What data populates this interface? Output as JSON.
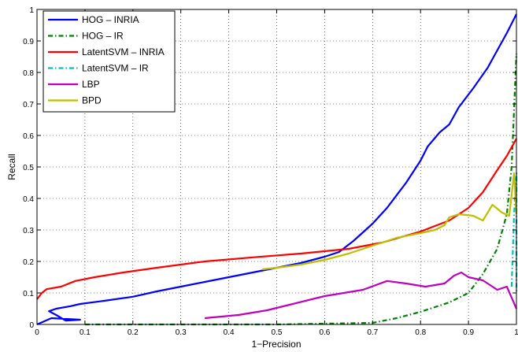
{
  "chart_data": {
    "type": "line",
    "title": "",
    "xlabel": "1−Precision",
    "ylabel": "Recall",
    "xlim": [
      0,
      1
    ],
    "ylim": [
      0,
      1
    ],
    "grid": true,
    "legend_position": "top-left",
    "x_ticks": [
      "0",
      "0.1",
      "0.2",
      "0.3",
      "0.4",
      "0.5",
      "0.6",
      "0.7",
      "0.8",
      "0.9",
      "1"
    ],
    "y_ticks": [
      "0",
      "0.1",
      "0.2",
      "0.3",
      "0.4",
      "0.5",
      "0.6",
      "0.7",
      "0.8",
      "0.9",
      "1"
    ],
    "series": [
      {
        "name": "HOG – INRIA",
        "color": "#0000ff",
        "dash": "solid",
        "points": [
          [
            0.0,
            0.0
          ],
          [
            0.03,
            0.02
          ],
          [
            0.09,
            0.015
          ],
          [
            0.06,
            0.012
          ],
          [
            0.04,
            0.03
          ],
          [
            0.025,
            0.042
          ],
          [
            0.04,
            0.05
          ],
          [
            0.07,
            0.058
          ],
          [
            0.09,
            0.065
          ],
          [
            0.14,
            0.075
          ],
          [
            0.2,
            0.088
          ],
          [
            0.25,
            0.105
          ],
          [
            0.3,
            0.12
          ],
          [
            0.35,
            0.135
          ],
          [
            0.4,
            0.15
          ],
          [
            0.45,
            0.165
          ],
          [
            0.5,
            0.18
          ],
          [
            0.55,
            0.195
          ],
          [
            0.6,
            0.215
          ],
          [
            0.63,
            0.23
          ],
          [
            0.66,
            0.265
          ],
          [
            0.7,
            0.32
          ],
          [
            0.73,
            0.37
          ],
          [
            0.77,
            0.45
          ],
          [
            0.8,
            0.52
          ],
          [
            0.815,
            0.565
          ],
          [
            0.84,
            0.61
          ],
          [
            0.86,
            0.635
          ],
          [
            0.88,
            0.69
          ],
          [
            0.91,
            0.75
          ],
          [
            0.94,
            0.815
          ],
          [
            0.96,
            0.87
          ],
          [
            0.98,
            0.925
          ],
          [
            1.0,
            0.985
          ]
        ]
      },
      {
        "name": "HOG – IR",
        "color": "#008000",
        "dash": "dashdot",
        "points": [
          [
            0.1,
            0.0
          ],
          [
            0.5,
            0.0
          ],
          [
            0.7,
            0.005
          ],
          [
            0.75,
            0.02
          ],
          [
            0.8,
            0.04
          ],
          [
            0.86,
            0.07
          ],
          [
            0.9,
            0.1
          ],
          [
            0.93,
            0.16
          ],
          [
            0.96,
            0.24
          ],
          [
            0.98,
            0.35
          ],
          [
            0.99,
            0.5
          ],
          [
            1.0,
            0.86
          ]
        ]
      },
      {
        "name": "LatentSVM – INRIA",
        "color": "#ff0000",
        "dash": "solid",
        "points": [
          [
            0.0,
            0.08
          ],
          [
            0.01,
            0.1
          ],
          [
            0.02,
            0.112
          ],
          [
            0.05,
            0.12
          ],
          [
            0.08,
            0.138
          ],
          [
            0.12,
            0.15
          ],
          [
            0.18,
            0.165
          ],
          [
            0.25,
            0.18
          ],
          [
            0.35,
            0.2
          ],
          [
            0.45,
            0.213
          ],
          [
            0.55,
            0.225
          ],
          [
            0.65,
            0.24
          ],
          [
            0.72,
            0.26
          ],
          [
            0.8,
            0.295
          ],
          [
            0.86,
            0.33
          ],
          [
            0.9,
            0.37
          ],
          [
            0.93,
            0.42
          ],
          [
            0.96,
            0.49
          ],
          [
            0.98,
            0.535
          ],
          [
            1.0,
            0.59
          ]
        ]
      },
      {
        "name": "LatentSVM – IR",
        "color": "#00bfbf",
        "dash": "dashdot",
        "points": [
          [
            0.99,
            0.12
          ],
          [
            0.995,
            0.35
          ],
          [
            1.0,
            0.48
          ],
          [
            1.0,
            0.1
          ]
        ]
      },
      {
        "name": "LBP",
        "color": "#bf00bf",
        "dash": "solid",
        "points": [
          [
            0.35,
            0.02
          ],
          [
            0.42,
            0.03
          ],
          [
            0.48,
            0.045
          ],
          [
            0.52,
            0.06
          ],
          [
            0.56,
            0.075
          ],
          [
            0.6,
            0.09
          ],
          [
            0.64,
            0.1
          ],
          [
            0.68,
            0.11
          ],
          [
            0.73,
            0.138
          ],
          [
            0.77,
            0.13
          ],
          [
            0.81,
            0.12
          ],
          [
            0.85,
            0.13
          ],
          [
            0.87,
            0.155
          ],
          [
            0.885,
            0.165
          ],
          [
            0.9,
            0.15
          ],
          [
            0.93,
            0.14
          ],
          [
            0.96,
            0.11
          ],
          [
            0.98,
            0.12
          ],
          [
            1.0,
            0.05
          ]
        ]
      },
      {
        "name": "BPD",
        "color": "#bfbf00",
        "dash": "solid",
        "points": [
          [
            0.47,
            0.175
          ],
          [
            0.5,
            0.18
          ],
          [
            0.55,
            0.19
          ],
          [
            0.6,
            0.205
          ],
          [
            0.65,
            0.225
          ],
          [
            0.7,
            0.25
          ],
          [
            0.75,
            0.275
          ],
          [
            0.8,
            0.29
          ],
          [
            0.83,
            0.3
          ],
          [
            0.85,
            0.315
          ],
          [
            0.86,
            0.34
          ],
          [
            0.88,
            0.35
          ],
          [
            0.91,
            0.345
          ],
          [
            0.93,
            0.33
          ],
          [
            0.95,
            0.38
          ],
          [
            0.97,
            0.355
          ],
          [
            0.985,
            0.345
          ],
          [
            0.995,
            0.48
          ],
          [
            1.0,
            0.35
          ]
        ]
      }
    ]
  }
}
